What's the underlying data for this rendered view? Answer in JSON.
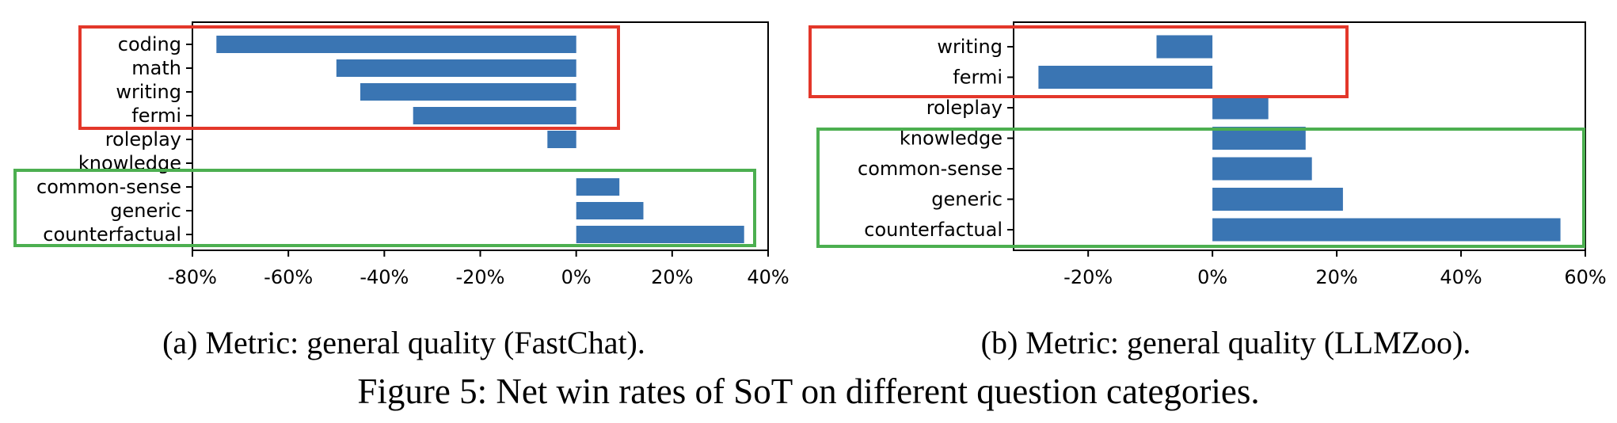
{
  "figure": {
    "caption": "Figure 5: Net win rates of SoT on different question categories."
  },
  "colors": {
    "bar": "#3a75b3",
    "highlight_negative": "#e3372a",
    "highlight_positive": "#4caf50",
    "axis": "#000000"
  },
  "chart_data": [
    {
      "type": "bar",
      "orientation": "horizontal",
      "subcaption": "(a) Metric: general quality (FastChat).",
      "categories": [
        "coding",
        "math",
        "writing",
        "fermi",
        "roleplay",
        "knowledge",
        "common-sense",
        "generic",
        "counterfactual"
      ],
      "values": [
        -75,
        -50,
        -45,
        -34,
        -6,
        0,
        9,
        14,
        35
      ],
      "unit": "%",
      "xlim": [
        -80,
        40
      ],
      "xticks": [
        -80,
        -60,
        -40,
        -20,
        0,
        20,
        40
      ],
      "xtick_labels": [
        "-80%",
        "-60%",
        "-40%",
        "-20%",
        "0%",
        "20%",
        "40%"
      ],
      "grid": false,
      "highlight_boxes": [
        {
          "color": "red",
          "categories": [
            "coding",
            "math",
            "writing",
            "fermi"
          ]
        },
        {
          "color": "green",
          "categories": [
            "common-sense",
            "generic",
            "counterfactual"
          ]
        }
      ]
    },
    {
      "type": "bar",
      "orientation": "horizontal",
      "subcaption": "(b) Metric: general quality (LLMZoo).",
      "categories": [
        "writing",
        "fermi",
        "roleplay",
        "knowledge",
        "common-sense",
        "generic",
        "counterfactual"
      ],
      "values": [
        -9,
        -28,
        9,
        15,
        16,
        21,
        56
      ],
      "unit": "%",
      "xlim": [
        -32,
        60
      ],
      "xticks": [
        -20,
        0,
        20,
        40,
        60
      ],
      "xtick_labels": [
        "-20%",
        "0%",
        "20%",
        "40%",
        "60%"
      ],
      "grid": false,
      "highlight_boxes": [
        {
          "color": "red",
          "categories": [
            "writing",
            "fermi"
          ]
        },
        {
          "color": "green",
          "categories": [
            "knowledge",
            "common-sense",
            "generic",
            "counterfactual"
          ]
        }
      ]
    }
  ]
}
